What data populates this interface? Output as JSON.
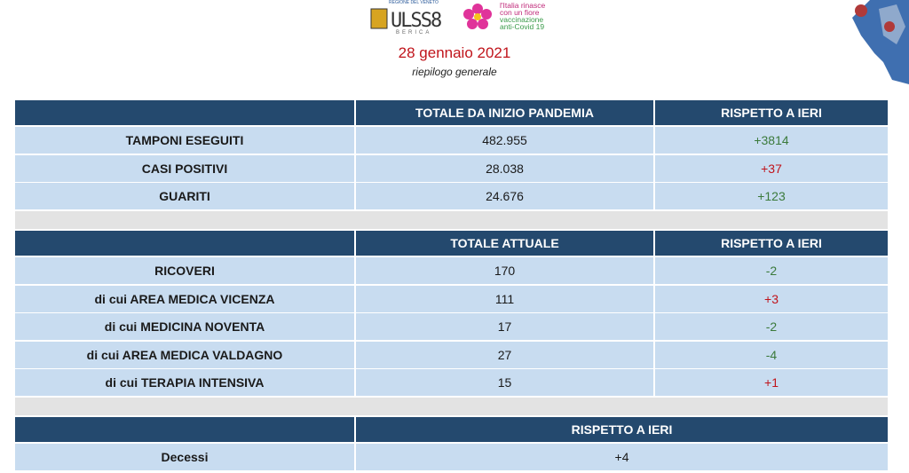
{
  "header": {
    "region": "REGIONE DEL VENETO",
    "ulss": "ULSS8",
    "ulss_sub": "BERICA",
    "campaign": [
      "l'Italia rinasce",
      "con un fiore",
      "vaccinazione",
      "anti-Covid 19"
    ],
    "date": "28 gennaio 2021",
    "subtitle": "riepilogo generale"
  },
  "sections": [
    {
      "columns": [
        "TOTALE DA INIZIO PANDEMIA",
        "RISPETTO A IERI"
      ],
      "rows": [
        {
          "label": "TAMPONI ESEGUITI",
          "total": "482.955",
          "delta": "+3814",
          "delta_color": "#3b7a3b"
        },
        {
          "label": "CASI POSITIVI",
          "total": "28.038",
          "delta": "+37",
          "delta_color": "#c0141b"
        },
        {
          "label": "GUARITI",
          "total": "24.676",
          "delta": "+123",
          "delta_color": "#3b7a3b"
        }
      ]
    },
    {
      "columns": [
        "TOTALE ATTUALE",
        "RISPETTO A IERI"
      ],
      "rows": [
        {
          "label": "RICOVERI",
          "total": "170",
          "delta": "-2",
          "delta_color": "#3b7a3b"
        },
        {
          "label": "di cui AREA MEDICA VICENZA",
          "total": "111",
          "delta": "+3",
          "delta_color": "#c0141b"
        },
        {
          "label": "di cui MEDICINA NOVENTA",
          "total": "17",
          "delta": "-2",
          "delta_color": "#3b7a3b"
        },
        {
          "label": "di cui AREA MEDICA VALDAGNO",
          "total": "27",
          "delta": "-4",
          "delta_color": "#3b7a3b"
        },
        {
          "label": "di cui TERAPIA INTENSIVA",
          "total": "15",
          "delta": "+1",
          "delta_color": "#c0141b"
        }
      ]
    },
    {
      "columns": [
        "RISPETTO A IERI"
      ],
      "rows": [
        {
          "label": "Decessi",
          "delta": "+4",
          "delta_color": "#1a1a1a"
        }
      ]
    }
  ]
}
